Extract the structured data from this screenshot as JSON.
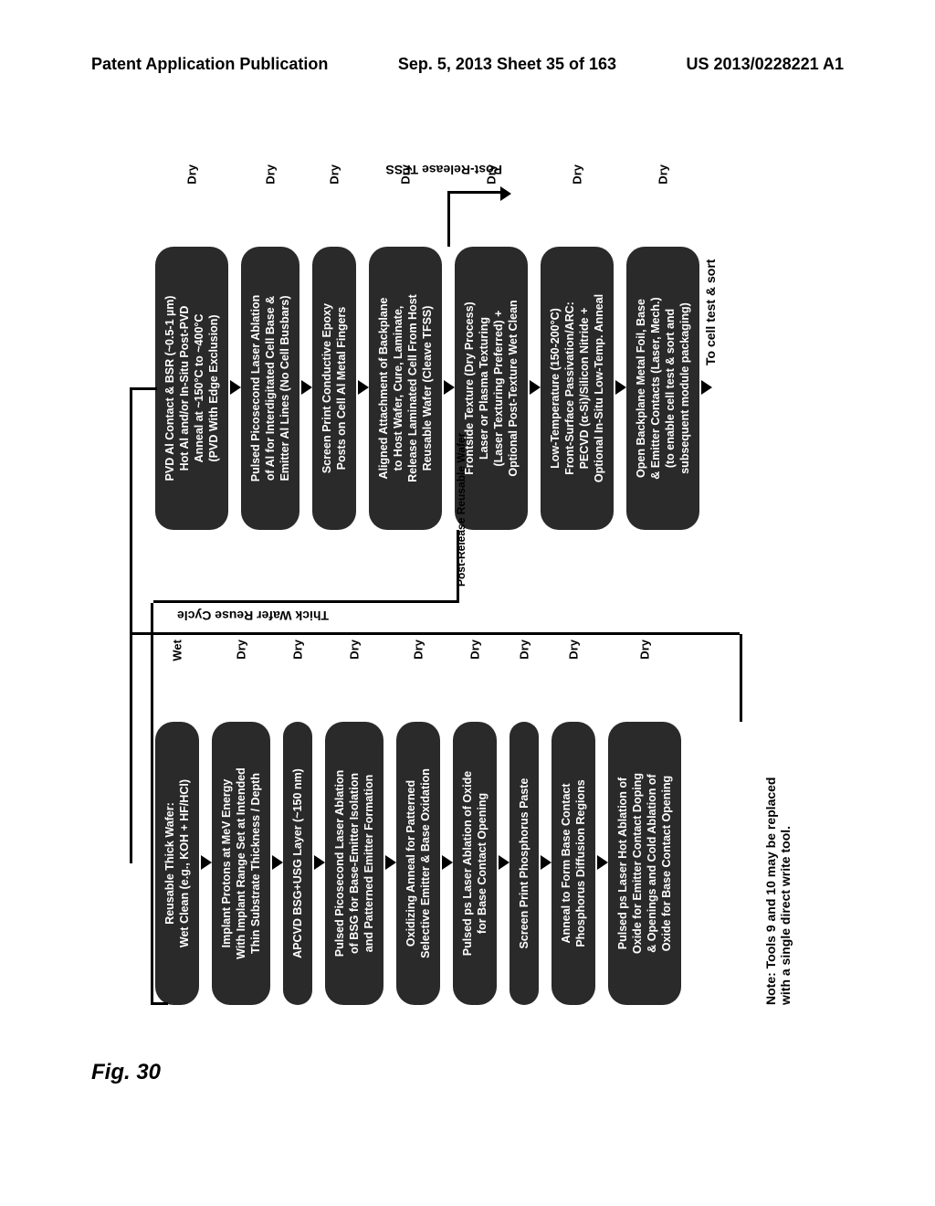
{
  "header": {
    "left": "Patent Application Publication",
    "center": "Sep. 5, 2013  Sheet 35 of 163",
    "right": "US 2013/0228221 A1"
  },
  "figure_label": "Fig. 30",
  "left_steps": [
    {
      "text": "Reusable Thick Wafer:\nWet Clean (e.g., KOH + HF/HCl)",
      "tag": "Wet"
    },
    {
      "text": "Implant Protons at MeV Energy\nWith Implant Range Set at Intended\nThin Substrate Thickness / Depth",
      "tag": "Dry"
    },
    {
      "text": "APCVD BSG+USG Layer (~150 nm)",
      "tag": "Dry"
    },
    {
      "text": "Pulsed Picosecond Laser Ablation\nof BSG for Base-Emitter Isolation\nand Patterned Emitter Formation",
      "tag": "Dry"
    },
    {
      "text": "Oxidizing Anneal for Patterned\nSelective Emitter & Base Oxidation",
      "tag": "Dry"
    },
    {
      "text": "Pulsed ps Laser Ablation of Oxide\nfor Base Contact Opening",
      "tag": "Dry"
    },
    {
      "text": "Screen Print Phosphorus Paste",
      "tag": "Dry"
    },
    {
      "text": "Anneal to Form Base Contact\nPhosphorus Diffusion Regions",
      "tag": "Dry"
    },
    {
      "text": "Pulsed ps Laser Hot Ablation of\nOxide for Emitter Contact Doping\n& Openings and Cold Ablation of\nOxide for Base Contact Opening",
      "tag": "Dry"
    }
  ],
  "right_steps": [
    {
      "text": "PVD Al Contact & BSR (~0.5-1 µm)\nHot Al and/or In-Situ Post-PVD\nAnneal at ~150°C to ~400°C\n(PVD With Edge Exclusion)",
      "tag": "Dry"
    },
    {
      "text": "Pulsed Picosecond Laser Ablation\nof Al for Interdigitated Cell Base &\nEmitter Al Lines (No Cell Busbars)",
      "tag": "Dry"
    },
    {
      "text": "Screen Print Conductive Epoxy\nPosts on Cell Al Metal Fingers",
      "tag": "Dry"
    },
    {
      "text": "Aligned Attachment of Backplane\nto Host Wafer, Cure, Laminate,\nRelease Laminated Cell From Host\nReusable Wafer (Cleave TFSS)",
      "tag": "Dry"
    },
    {
      "text": "Frontside Texture (Dry Process)\nLaser or Plasma Texturing\n(Laser Texturing Preferred) +\nOptional Post-Texture Wet Clean",
      "tag": "Dry"
    },
    {
      "text": "Low-Temperature (150-200°C)\nFront-Surface Passivation/ARC:\nPECVD (α-Si)/Silicon Nitride +\nOptional In-Situ Low-Temp. Anneal",
      "tag": "Dry"
    },
    {
      "text": "Open Backplane Metal Foil, Base\n& Emitter Contacts (Laser, Mech.)\n(to enable cell test & sort and\nsubsequent module packaging)",
      "tag": "Dry"
    }
  ],
  "labels": {
    "reuse_cycle": "Thick Wafer Reuse Cycle",
    "post_release_wafer": "Post-Release Reusable Wafer",
    "post_release_tfss": "Post-Release TFSS",
    "final_arrow": "To cell test & sort"
  },
  "note": "Note: Tools 9 and 10 may be replaced\nwith a single direct write tool.",
  "colors": {
    "box_bg": "#2a2a2a",
    "box_text": "#ffffff",
    "page_bg": "#ffffff"
  }
}
